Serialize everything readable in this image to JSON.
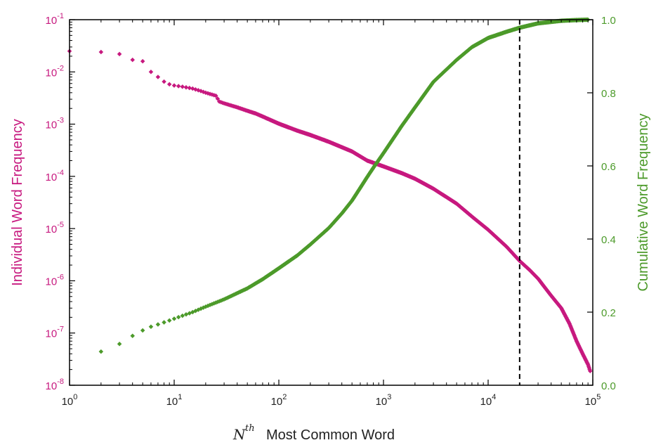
{
  "chart_data": {
    "type": "scatter",
    "x_scale": "log",
    "y_left_scale": "log",
    "y_right_scale": "linear",
    "xlim": [
      1,
      100000
    ],
    "ylim_left": [
      1e-08,
      0.1
    ],
    "ylim_right": [
      0.0,
      1.0
    ],
    "x_ticks": [
      {
        "base": "10",
        "exp": "0",
        "value": 1
      },
      {
        "base": "10",
        "exp": "1",
        "value": 10
      },
      {
        "base": "10",
        "exp": "2",
        "value": 100
      },
      {
        "base": "10",
        "exp": "3",
        "value": 1000
      },
      {
        "base": "10",
        "exp": "4",
        "value": 10000
      },
      {
        "base": "10",
        "exp": "5",
        "value": 100000
      }
    ],
    "y_left_ticks": [
      {
        "base": "10",
        "exp": "-8",
        "value": 1e-08
      },
      {
        "base": "10",
        "exp": "-7",
        "value": 1e-07
      },
      {
        "base": "10",
        "exp": "-6",
        "value": 1e-06
      },
      {
        "base": "10",
        "exp": "-5",
        "value": 1e-05
      },
      {
        "base": "10",
        "exp": "-4",
        "value": 0.0001
      },
      {
        "base": "10",
        "exp": "-3",
        "value": 0.001
      },
      {
        "base": "10",
        "exp": "-2",
        "value": 0.01
      },
      {
        "base": "10",
        "exp": "-1",
        "value": 0.1
      }
    ],
    "y_right_ticks": [
      "0.0",
      "0.2",
      "0.4",
      "0.6",
      "0.8",
      "1.0"
    ],
    "xlabel_sup": "th",
    "xlabel_base": "N",
    "xlabel_text": "Most Common Word",
    "ylabel_left": "Individual Word Frequency",
    "ylabel_right": "Cumulative Word Frequency",
    "vline_x": 20000,
    "series": [
      {
        "name": "Individual Word Frequency",
        "axis": "left",
        "color": "#c7197f",
        "points": [
          [
            1,
            0.025
          ],
          [
            2,
            0.024
          ],
          [
            3,
            0.022
          ],
          [
            4,
            0.017
          ],
          [
            5,
            0.016
          ],
          [
            6,
            0.01
          ],
          [
            7,
            0.008
          ],
          [
            8,
            0.0065
          ],
          [
            9,
            0.0058
          ],
          [
            10,
            0.0055
          ],
          [
            12,
            0.0052
          ],
          [
            15,
            0.0048
          ],
          [
            18,
            0.0043
          ],
          [
            20,
            0.004
          ],
          [
            25,
            0.0035
          ],
          [
            27,
            0.0027
          ],
          [
            30,
            0.0025
          ],
          [
            40,
            0.0021
          ],
          [
            50,
            0.0018
          ],
          [
            60,
            0.0016
          ],
          [
            70,
            0.0014
          ],
          [
            100,
            0.00102
          ],
          [
            150,
            0.00075
          ],
          [
            200,
            0.00062
          ],
          [
            300,
            0.00046
          ],
          [
            500,
            0.0003
          ],
          [
            700,
            0.0002
          ],
          [
            1000,
            0.000155
          ],
          [
            1500,
            0.000115
          ],
          [
            2000,
            9e-05
          ],
          [
            3000,
            5.8e-05
          ],
          [
            5000,
            3e-05
          ],
          [
            7000,
            1.7e-05
          ],
          [
            10000,
            9.5e-06
          ],
          [
            15000,
            4.5e-06
          ],
          [
            20000,
            2.4e-06
          ],
          [
            25000,
            1.6e-06
          ],
          [
            30000,
            1.1e-06
          ],
          [
            40000,
            5.2e-07
          ],
          [
            50000,
            3e-07
          ],
          [
            60000,
            1.5e-07
          ],
          [
            70000,
            7e-08
          ],
          [
            80000,
            4e-08
          ],
          [
            90000,
            2.5e-08
          ],
          [
            95000,
            1.8e-08
          ]
        ]
      },
      {
        "name": "Cumulative Word Frequency",
        "axis": "right",
        "color": "#4c9a2a",
        "points": [
          [
            2,
            0.092
          ],
          [
            3,
            0.113
          ],
          [
            4,
            0.135
          ],
          [
            5,
            0.15
          ],
          [
            6,
            0.16
          ],
          [
            8,
            0.172
          ],
          [
            10,
            0.182
          ],
          [
            15,
            0.2
          ],
          [
            20,
            0.215
          ],
          [
            30,
            0.235
          ],
          [
            50,
            0.265
          ],
          [
            70,
            0.29
          ],
          [
            100,
            0.32
          ],
          [
            150,
            0.355
          ],
          [
            200,
            0.385
          ],
          [
            300,
            0.43
          ],
          [
            400,
            0.47
          ],
          [
            500,
            0.505
          ],
          [
            600,
            0.54
          ],
          [
            700,
            0.57
          ],
          [
            800,
            0.595
          ],
          [
            1000,
            0.635
          ],
          [
            1500,
            0.71
          ],
          [
            2000,
            0.76
          ],
          [
            3000,
            0.83
          ],
          [
            5000,
            0.89
          ],
          [
            7000,
            0.925
          ],
          [
            10000,
            0.95
          ],
          [
            15000,
            0.967
          ],
          [
            20000,
            0.978
          ],
          [
            30000,
            0.99
          ],
          [
            50000,
            0.997
          ],
          [
            70000,
            0.999
          ],
          [
            90000,
            1.0
          ]
        ]
      }
    ]
  }
}
